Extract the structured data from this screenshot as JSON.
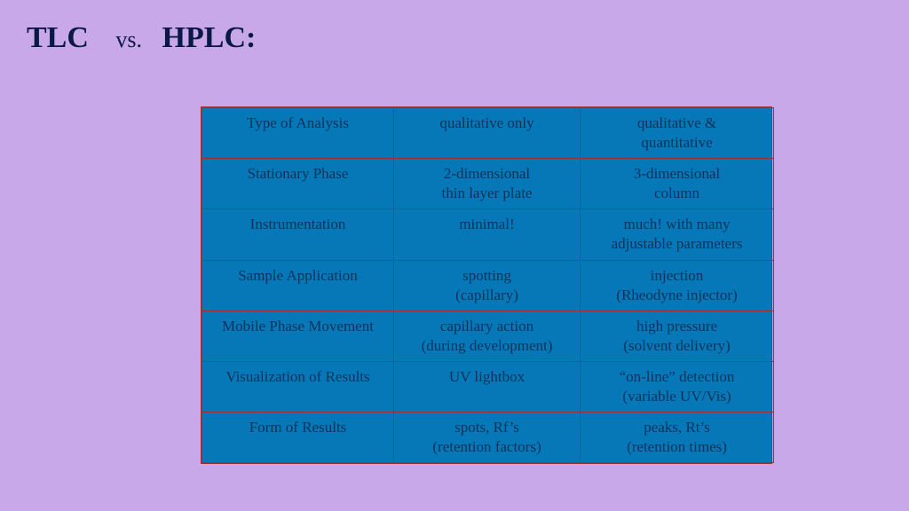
{
  "title": {
    "left": "TLC",
    "mid": "vs.",
    "right": "HPLC:"
  },
  "table": {
    "background_color": "#0678b8",
    "border_color": "#a03030",
    "text_color": "#06335a",
    "font_size_pt": 13,
    "rows": [
      {
        "label": "Type of Analysis",
        "tlc_line1": "qualitative only",
        "tlc_line2": "",
        "hplc_line1": "qualitative &",
        "hplc_line2": "quantitative"
      },
      {
        "label": "Stationary Phase",
        "tlc_line1": "2-dimensional",
        "tlc_line2": "thin layer plate",
        "hplc_line1": "3-dimensional",
        "hplc_line2": "column"
      },
      {
        "label": "Instrumentation",
        "tlc_line1": "minimal!",
        "tlc_line2": "",
        "hplc_line1": "much! with many",
        "hplc_line2": "adjustable parameters"
      },
      {
        "label": "Sample Application",
        "tlc_line1": "spotting",
        "tlc_line2": "(capillary)",
        "hplc_line1": "injection",
        "hplc_line2": "(Rheodyne injector)"
      },
      {
        "label": "Mobile Phase Movement",
        "tlc_line1": "capillary action",
        "tlc_line2": "(during development)",
        "hplc_line1": "high pressure",
        "hplc_line2": "(solvent delivery)"
      },
      {
        "label": "Visualization of Results",
        "tlc_line1": "UV lightbox",
        "tlc_line2": "",
        "hplc_line1": "“on-line” detection",
        "hplc_line2": "(variable UV/Vis)"
      },
      {
        "label": "Form of Results",
        "tlc_line1": "spots, Rf’s",
        "tlc_line2": "(retention factors)",
        "hplc_line1": "peaks, Rt’s",
        "hplc_line2": "(retention times)"
      }
    ]
  },
  "colors": {
    "page_background": "#c8a8e8",
    "title_color": "#0a1845"
  }
}
